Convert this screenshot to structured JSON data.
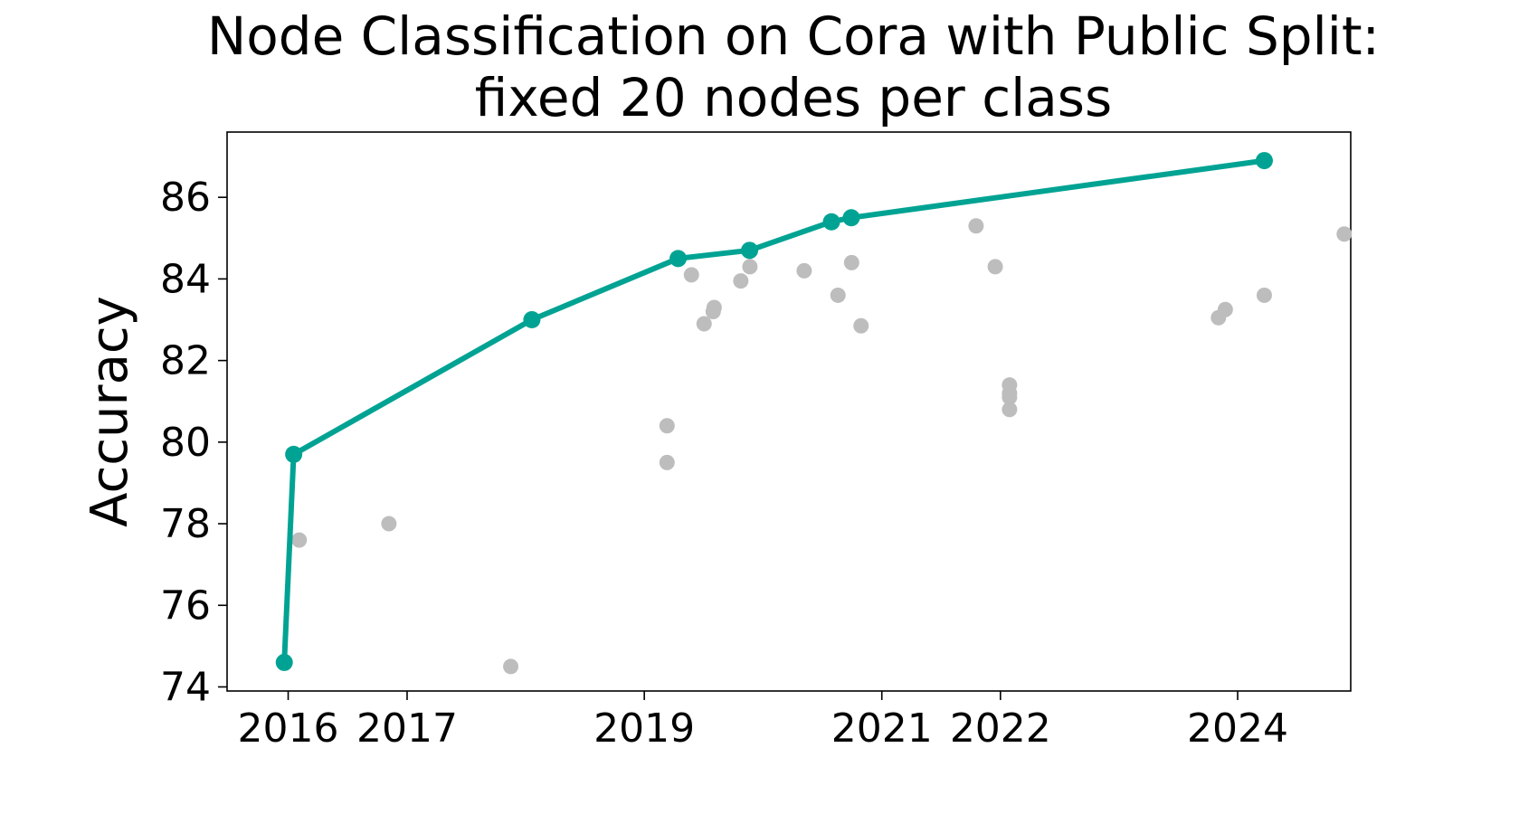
{
  "chart_data": {
    "type": "scatter",
    "title": "Node Classification on Cora with Public Split:",
    "subtitle": "fixed 20 nodes per class",
    "xlabel": "",
    "ylabel": "Accuracy",
    "x_ticks": [
      "2016",
      "2017",
      "2019",
      "2021",
      "2022",
      "2024"
    ],
    "y_ticks": [
      "74",
      "76",
      "78",
      "80",
      "82",
      "84",
      "86"
    ],
    "xlim": [
      "2015-06-27",
      "2024-12-14"
    ],
    "ylim": [
      73.9,
      87.6
    ],
    "grid": false,
    "series": [
      {
        "role": "state-of-the-art frontier",
        "style": "line+markers",
        "color": "#00a393",
        "points": [
          {
            "x": "2015-12-20",
            "y": 74.6
          },
          {
            "x": "2016-01-18",
            "y": 79.7
          },
          {
            "x": "2018-01-20",
            "y": 83.0
          },
          {
            "x": "2019-04-15",
            "y": 84.5
          },
          {
            "x": "2019-11-21",
            "y": 84.7
          },
          {
            "x": "2020-07-30",
            "y": 85.4
          },
          {
            "x": "2020-09-29",
            "y": 85.5
          },
          {
            "x": "2024-03-23",
            "y": 86.9
          }
        ]
      },
      {
        "role": "other methods",
        "style": "markers",
        "color": "#bdbdbd",
        "points": [
          {
            "x": "2016-02-04",
            "y": 77.6
          },
          {
            "x": "2016-11-06",
            "y": 78.0
          },
          {
            "x": "2017-11-16",
            "y": 74.5
          },
          {
            "x": "2019-03-12",
            "y": 80.4
          },
          {
            "x": "2019-03-12",
            "y": 79.5
          },
          {
            "x": "2019-05-26",
            "y": 84.1
          },
          {
            "x": "2019-07-04",
            "y": 82.9
          },
          {
            "x": "2019-08-01",
            "y": 83.2
          },
          {
            "x": "2019-08-04",
            "y": 83.3
          },
          {
            "x": "2019-10-25",
            "y": 83.95
          },
          {
            "x": "2019-11-22",
            "y": 84.3
          },
          {
            "x": "2020-05-07",
            "y": 84.2
          },
          {
            "x": "2020-08-19",
            "y": 83.6
          },
          {
            "x": "2020-09-30",
            "y": 84.4
          },
          {
            "x": "2020-10-29",
            "y": 82.85
          },
          {
            "x": "2021-10-18",
            "y": 85.3
          },
          {
            "x": "2021-12-16",
            "y": 84.3
          },
          {
            "x": "2022-01-29",
            "y": 81.4
          },
          {
            "x": "2022-01-29",
            "y": 81.1
          },
          {
            "x": "2022-01-29",
            "y": 81.2
          },
          {
            "x": "2022-01-29",
            "y": 80.8
          },
          {
            "x": "2023-11-03",
            "y": 83.05
          },
          {
            "x": "2023-11-24",
            "y": 83.25
          },
          {
            "x": "2024-03-23",
            "y": 83.6
          },
          {
            "x": "2024-11-24",
            "y": 85.1
          }
        ]
      }
    ]
  }
}
